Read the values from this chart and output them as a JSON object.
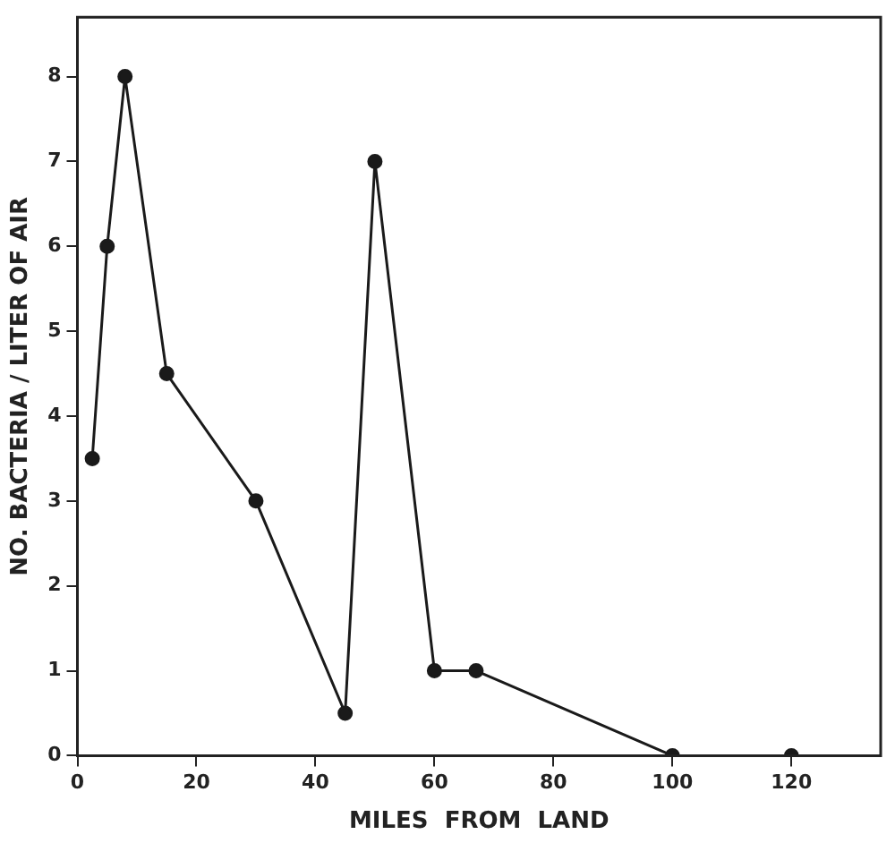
{
  "chart_data": {
    "type": "line",
    "xlabel": "MILES  FROM  LAND",
    "ylabel": "NO. BACTERIA / LITER OF AIR",
    "x": [
      2.5,
      5,
      8,
      15,
      30,
      45,
      50,
      60,
      67,
      100,
      120
    ],
    "series": [
      {
        "color": "#1a1a1a",
        "values": [
          3.5,
          6,
          8,
          4.5,
          3,
          0.5,
          7,
          1,
          1,
          0,
          0
        ]
      }
    ],
    "xlim": [
      0,
      135
    ],
    "xticks": [
      0,
      20,
      40,
      60,
      80,
      100,
      120
    ],
    "ylim": [
      0,
      8.7
    ],
    "yticks": [
      0,
      1,
      2,
      3,
      4,
      5,
      6,
      7,
      8
    ],
    "grid": false,
    "legend": false,
    "marker": "circle",
    "line_style": "solid"
  }
}
